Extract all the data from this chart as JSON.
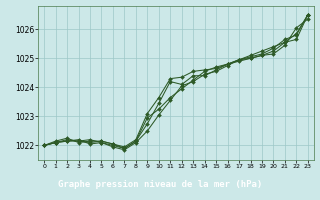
{
  "title": "Graphe pression niveau de la mer (hPa)",
  "background_color": "#cce8e8",
  "line_color": "#2d5a27",
  "marker_color": "#2d5a27",
  "grid_color": "#9ec8c8",
  "title_bg_color": "#3a6e2a",
  "title_text_color": "#ffffff",
  "xlim": [
    -0.5,
    23.5
  ],
  "ylim": [
    1021.5,
    1026.8
  ],
  "yticks": [
    1022,
    1023,
    1024,
    1025,
    1026
  ],
  "xticks": [
    0,
    1,
    2,
    3,
    4,
    5,
    6,
    7,
    8,
    9,
    10,
    11,
    12,
    13,
    14,
    15,
    16,
    17,
    18,
    19,
    20,
    21,
    22,
    23
  ],
  "series": [
    [
      1022.0,
      1022.1,
      1022.15,
      1022.2,
      1022.05,
      1022.1,
      1021.95,
      1021.85,
      1022.1,
      1022.5,
      1023.05,
      1023.55,
      1024.05,
      1024.2,
      1024.45,
      1024.55,
      1024.75,
      1024.95,
      1025.0,
      1025.1,
      1025.15,
      1025.45,
      1026.05,
      1026.35
    ],
    [
      1022.0,
      1022.1,
      1022.2,
      1022.15,
      1022.2,
      1022.1,
      1022.0,
      1021.9,
      1022.15,
      1022.75,
      1023.45,
      1024.2,
      1024.1,
      1024.4,
      1024.4,
      1024.6,
      1024.8,
      1024.9,
      1025.0,
      1025.1,
      1025.25,
      1025.55,
      1025.65,
      1026.5
    ],
    [
      1022.0,
      1022.15,
      1022.25,
      1022.1,
      1022.15,
      1022.15,
      1022.05,
      1021.95,
      1022.2,
      1023.1,
      1023.65,
      1024.3,
      1024.35,
      1024.55,
      1024.6,
      1024.65,
      1024.8,
      1024.95,
      1025.05,
      1025.15,
      1025.35,
      1025.65,
      1025.8,
      1026.5
    ],
    [
      1022.0,
      1022.1,
      1022.15,
      1022.15,
      1022.1,
      1022.15,
      1022.05,
      1021.9,
      1022.15,
      1022.95,
      1023.25,
      1023.65,
      1023.95,
      1024.25,
      1024.55,
      1024.7,
      1024.8,
      1024.95,
      1025.1,
      1025.25,
      1025.4,
      1025.55,
      1025.85,
      1026.5
    ]
  ]
}
